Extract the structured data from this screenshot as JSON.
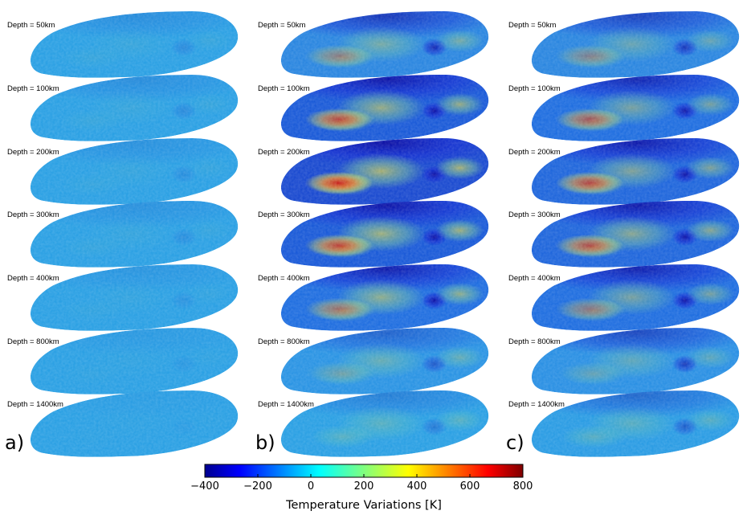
{
  "depth_labels": [
    "Depth = 50km",
    "Depth = 100km",
    "Depth = 200km",
    "Depth = 300km",
    "Depth = 400km",
    "Depth = 800km",
    "Depth = 1400km"
  ],
  "panel_labels": [
    "a)",
    "b)",
    "c)"
  ],
  "colorbar": {
    "title": "Temperature Variations [K]",
    "min": -400,
    "max": 800,
    "ticks": [
      "−400",
      "−200",
      "0",
      "200",
      "400",
      "600",
      "800"
    ],
    "colormap": "jet"
  },
  "colors": {
    "ocean_blue": "#1e90e6",
    "deep_blue": "#0a1ec8",
    "hot_red": "#d21e1e",
    "warm_yellow": "#e6d23c"
  }
}
